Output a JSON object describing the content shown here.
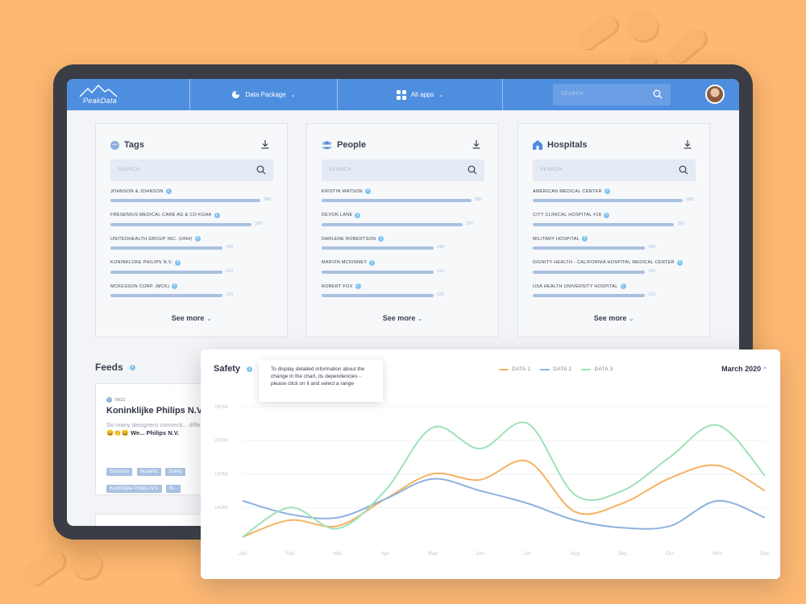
{
  "nav": {
    "brand": "PeakData",
    "data_package_label": "Data Package",
    "apps_label": "All apps",
    "search_placeholder": "SEARCH"
  },
  "cards": [
    {
      "title": "Tags",
      "search_placeholder": "SEARCH",
      "items": [
        {
          "label": "JOHNSON & JOHNSON",
          "value": "380"
        },
        {
          "label": "FRESENIUS MEDICAL CARE AG & CO KGAA",
          "value": "320"
        },
        {
          "label": "UNITEDHEALTH GROUP INC. (UNH)",
          "value": "240"
        },
        {
          "label": "KONINKLOKE PHILIPS N.V.",
          "value": "120"
        },
        {
          "label": "MCKESSON CORP. (MCK)",
          "value": "120"
        }
      ],
      "see_more": "See more"
    },
    {
      "title": "People",
      "search_placeholder": "SEARCH",
      "items": [
        {
          "label": "KRISTIN WATSON",
          "value": "380"
        },
        {
          "label": "DEVON LANE",
          "value": "320"
        },
        {
          "label": "DARLENE ROBERTSON",
          "value": "240"
        },
        {
          "label": "MARVIN MCKINNEY",
          "value": "120"
        },
        {
          "label": "ROBERT FOX",
          "value": "120"
        }
      ],
      "see_more": "See more"
    },
    {
      "title": "Hospitals",
      "search_placeholder": "SEARCH",
      "items": [
        {
          "label": "AMERICAN MEDICAL CENTER",
          "value": "380"
        },
        {
          "label": "CITY CLINICAL HOSPITAL #18",
          "value": "320"
        },
        {
          "label": "MILITARY HOSPITAL",
          "value": "240"
        },
        {
          "label": "DIGNITY HEALTH - CALIFORNIA HOSPITAL MEDICAL CENTER",
          "value": "120"
        },
        {
          "label": "USA HEALTH UNIVERSITY HOSPITAL",
          "value": "120"
        }
      ],
      "see_more": "See more"
    }
  ],
  "feeds": {
    "title": "Feeds",
    "card": {
      "tag_label": "TAGS",
      "heading": "Koninklijke Philips N.V.",
      "body_text": "So many designers connecti... different channel. 😀👏😀",
      "body_bold": "We... Philips N.V.",
      "chips": [
        "Sclerosis",
        "Novartis",
        "Safety",
        "Koninklijke Philips N.V.",
        "N..."
      ]
    }
  },
  "safety": {
    "title": "Safety",
    "tooltip": "To display detailed information about the change in the chart, its dependencies - please click on it and select a range",
    "period": "March 2020",
    "legend": [
      "DATA 1",
      "DATA 2",
      "DATA 3"
    ]
  },
  "chart_data": {
    "type": "line",
    "x": [
      "Jan",
      "Feb",
      "Mar",
      "Apr",
      "May",
      "Jun",
      "Jul",
      "Aug",
      "Sep",
      "Oct",
      "Nov",
      "Dec"
    ],
    "y_ticks": [
      "260M",
      "220M",
      "180M",
      "140M"
    ],
    "ylim": [
      100,
      280
    ],
    "grid": true,
    "series": [
      {
        "name": "DATA 1",
        "color": "#F5B263",
        "values": [
          105,
          125,
          118,
          150,
          180,
          173,
          195,
          135,
          145,
          175,
          190,
          160
        ]
      },
      {
        "name": "DATA 2",
        "color": "#8DB1DF",
        "values": [
          148,
          132,
          128,
          150,
          174,
          160,
          145,
          125,
          116,
          118,
          148,
          128
        ]
      },
      {
        "name": "DATA 3",
        "color": "#9EE2B6",
        "values": [
          105,
          140,
          115,
          160,
          235,
          210,
          240,
          155,
          160,
          200,
          238,
          178
        ]
      }
    ]
  }
}
